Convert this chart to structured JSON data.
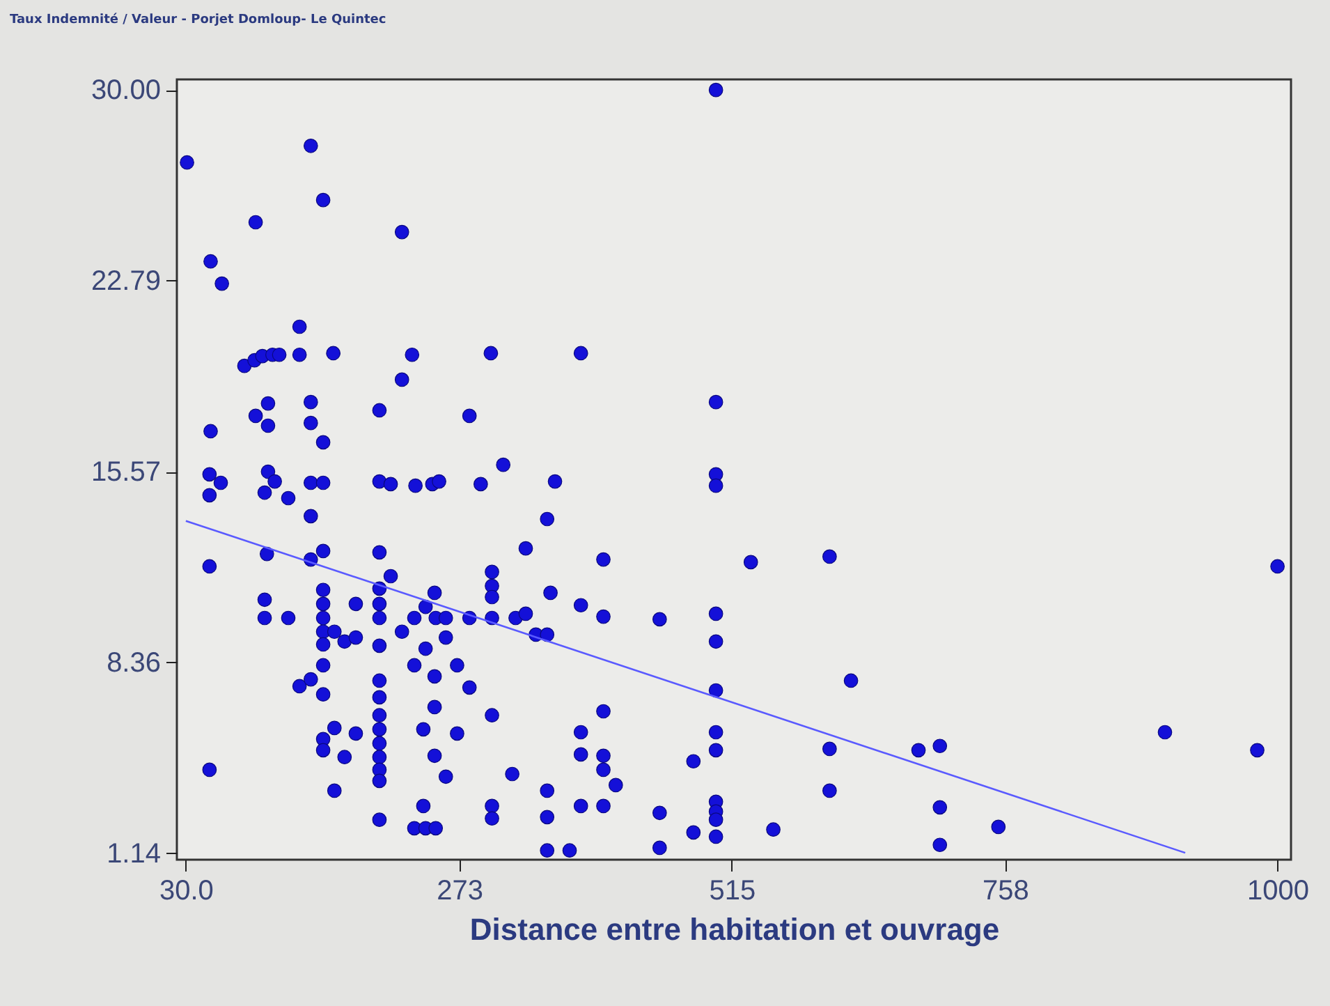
{
  "chart_data": {
    "type": "scatter",
    "title": "Taux Indemnité / Valeur - Porjet Domloup- Le Quintec",
    "xlabel": "Distance entre habitation et ouvrage",
    "xlim": [
      22,
      1012
    ],
    "ylim": [
      0.9,
      30.4
    ],
    "xticks": [
      {
        "value": 30,
        "label": "30.0"
      },
      273,
      515,
      758,
      1000
    ],
    "yticks": [
      1.14,
      8.36,
      15.57,
      22.79,
      {
        "value": 30,
        "label": "30.00"
      }
    ],
    "series": [
      {
        "type": "scatter",
        "marker": "circle",
        "color": "#1410d8",
        "x": [
          31,
          141,
          152,
          92,
          222,
          52,
          62,
          131,
          82,
          91,
          98,
          107,
          113,
          131,
          161,
          231,
          301,
          381,
          222,
          103,
          92,
          103,
          141,
          141,
          152,
          202,
          52,
          282,
          312,
          51,
          61,
          103,
          109,
          141,
          152,
          202,
          212,
          234,
          249,
          255,
          292,
          358,
          51,
          100,
          121,
          141,
          351,
          332,
          51,
          102,
          141,
          152,
          202,
          212,
          202,
          302,
          302,
          302,
          354,
          251,
          100,
          100,
          121,
          152,
          152,
          152,
          152,
          152,
          162,
          171,
          181,
          181,
          202,
          202,
          202,
          222,
          233,
          243,
          252,
          261,
          261,
          282,
          302,
          323,
          332,
          341,
          351,
          152,
          131,
          141,
          152,
          233,
          243,
          251,
          271,
          282,
          202,
          202,
          251,
          302,
          162,
          152,
          152,
          181,
          171,
          202,
          202,
          202,
          202,
          202,
          202,
          241,
          271,
          251,
          261,
          320,
          51,
          162,
          351,
          202,
          241,
          233,
          243,
          252,
          302,
          302,
          351,
          351,
          501,
          501,
          501,
          501,
          401,
          532,
          602,
          381,
          401,
          451,
          501,
          501,
          501,
          621,
          401,
          381,
          381,
          401,
          401,
          412,
          501,
          501,
          481,
          602,
          681,
          700,
          371,
          381,
          401,
          451,
          451,
          481,
          501,
          501,
          501,
          501,
          552,
          602,
          700,
          700,
          1000,
          900,
          982,
          752
        ],
        "values": [
          27.26,
          27.89,
          25.84,
          25.0,
          24.63,
          23.52,
          22.68,
          21.05,
          19.57,
          19.78,
          19.94,
          19.99,
          19.99,
          19.99,
          20.05,
          19.99,
          20.05,
          20.05,
          19.05,
          18.15,
          17.68,
          17.31,
          18.2,
          17.41,
          16.68,
          17.89,
          17.1,
          17.68,
          15.83,
          15.47,
          15.15,
          15.57,
          15.2,
          15.15,
          15.15,
          15.2,
          15.1,
          15.04,
          15.1,
          15.2,
          15.1,
          15.2,
          14.68,
          14.78,
          14.57,
          13.89,
          13.78,
          12.67,
          11.99,
          12.46,
          12.25,
          12.57,
          12.52,
          11.62,
          11.15,
          11.78,
          11.25,
          10.83,
          10.99,
          10.99,
          10.73,
          10.04,
          10.04,
          11.1,
          10.57,
          10.04,
          9.52,
          9.04,
          9.52,
          9.15,
          9.3,
          10.57,
          10.57,
          10.04,
          8.99,
          9.52,
          10.04,
          10.46,
          10.04,
          10.04,
          9.3,
          10.04,
          10.04,
          10.04,
          10.2,
          9.41,
          9.41,
          8.25,
          7.46,
          7.72,
          7.15,
          8.25,
          8.88,
          7.83,
          8.25,
          7.41,
          7.67,
          7.04,
          6.67,
          6.36,
          5.88,
          5.46,
          5.04,
          5.67,
          4.78,
          6.36,
          5.83,
          5.3,
          4.78,
          4.3,
          3.88,
          5.83,
          5.67,
          4.83,
          4.04,
          4.14,
          4.3,
          3.51,
          3.51,
          2.41,
          2.93,
          2.09,
          2.09,
          2.09,
          2.93,
          2.46,
          2.51,
          1.25,
          30.0,
          18.2,
          15.47,
          15.04,
          12.25,
          12.15,
          12.36,
          10.52,
          10.09,
          9.99,
          10.2,
          9.15,
          7.3,
          7.67,
          6.51,
          5.72,
          4.88,
          4.83,
          4.3,
          3.72,
          5.72,
          5.04,
          4.62,
          5.09,
          5.04,
          5.2,
          1.25,
          2.93,
          2.93,
          2.67,
          1.35,
          1.93,
          3.09,
          2.72,
          2.41,
          1.77,
          2.04,
          3.51,
          2.88,
          1.46,
          11.99,
          5.72,
          5.04,
          2.14
        ]
      },
      {
        "type": "line",
        "color": "#5a5aff",
        "x": [
          30,
          918
        ],
        "values": [
          13.71,
          1.16
        ]
      }
    ]
  }
}
